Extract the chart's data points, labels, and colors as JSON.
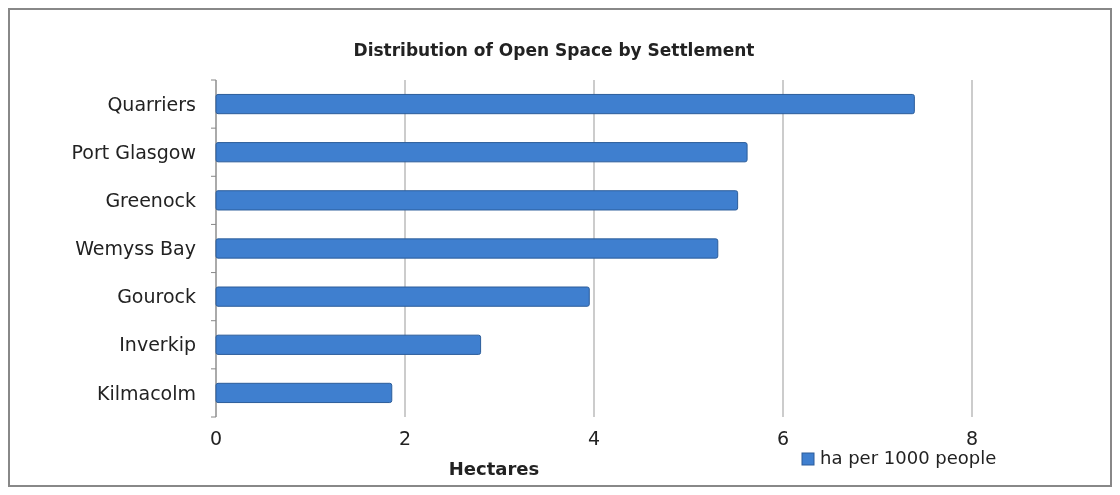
{
  "chart_data": {
    "type": "bar",
    "orientation": "horizontal",
    "title": "Distribution of Open Space by Settlement",
    "xlabel": "Hectares",
    "categories": [
      "Quarriers",
      "Port Glasgow",
      "Greenock",
      "Wemyss Bay",
      "Gourock",
      "Inverkip",
      "Kilmacolm"
    ],
    "series": [
      {
        "name": "ha per 1000 people",
        "color": "#3f7fcf",
        "values": [
          7.39,
          5.62,
          5.52,
          5.31,
          3.95,
          2.8,
          1.86
        ]
      }
    ],
    "xlim": [
      0,
      8
    ],
    "xticks": [
      0,
      2,
      4,
      6,
      8
    ],
    "grid": "x",
    "legend": "bottom right"
  }
}
